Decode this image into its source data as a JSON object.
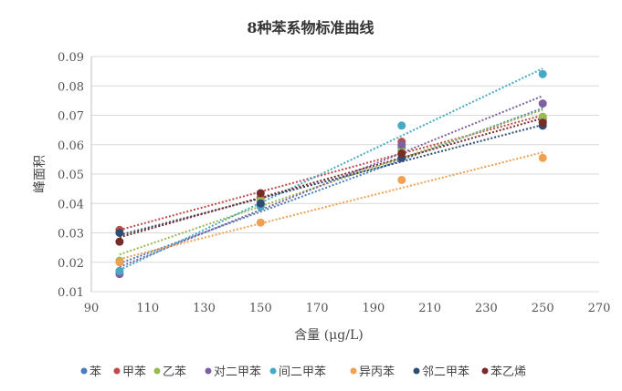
{
  "chart_data": {
    "type": "scatter",
    "title": "8种苯系物标准曲线",
    "xlabel": "含量 (μg/L)",
    "ylabel": "峰面积",
    "xlim": [
      90,
      270
    ],
    "ylim": [
      0.01,
      0.09
    ],
    "xticks": [
      "90",
      "110",
      "130",
      "150",
      "170",
      "190",
      "210",
      "230",
      "250",
      "270"
    ],
    "yticks": [
      "0.01",
      "0.02",
      "0.03",
      "0.04",
      "0.05",
      "0.06",
      "0.07",
      "0.08",
      "0.09"
    ],
    "grid": true,
    "legend_position": "bottom",
    "trendline": "linear-dotted",
    "x": [
      100,
      150,
      200,
      250
    ],
    "series": [
      {
        "name": "苯",
        "color": "#4a7ebb",
        "values": [
          0.017,
          0.039,
          0.059,
          0.069
        ]
      },
      {
        "name": "甲苯",
        "color": "#be4b48",
        "values": [
          0.031,
          0.042,
          0.061,
          0.068
        ]
      },
      {
        "name": "乙苯",
        "color": "#98b954",
        "values": [
          0.0205,
          0.041,
          0.058,
          0.0695
        ]
      },
      {
        "name": "对二甲苯",
        "color": "#7d60a0",
        "values": [
          0.016,
          0.04,
          0.06,
          0.074
        ]
      },
      {
        "name": "间二甲苯",
        "color": "#46aac5",
        "values": [
          0.017,
          0.039,
          0.0665,
          0.084
        ]
      },
      {
        "name": "异丙苯",
        "color": "#f0a050",
        "values": [
          0.02,
          0.0335,
          0.048,
          0.0555
        ]
      },
      {
        "name": "邻二甲苯",
        "color": "#2c4d75",
        "values": [
          0.03,
          0.04,
          0.0555,
          0.0665
        ]
      },
      {
        "name": "苯乙烯",
        "color": "#772c2a",
        "values": [
          0.027,
          0.0435,
          0.057,
          0.0675
        ]
      }
    ]
  }
}
